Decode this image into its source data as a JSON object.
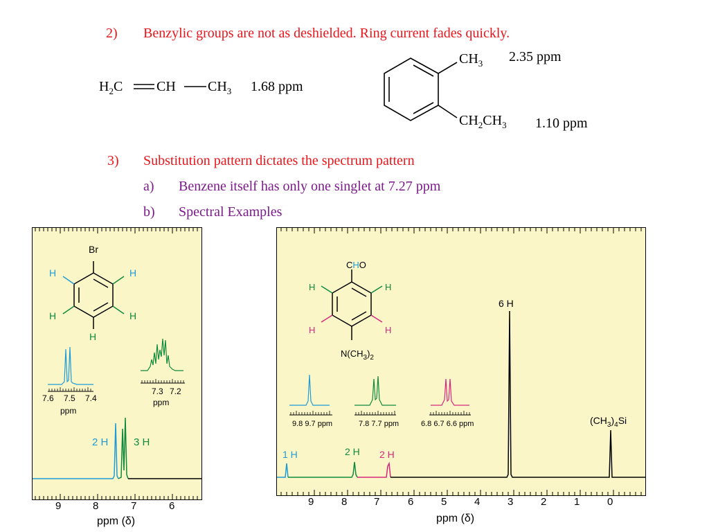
{
  "bullets": {
    "b2": {
      "num": "2)",
      "text": "Benzylic groups are not as deshielded.  Ring current fades quickly."
    },
    "b3": {
      "num": "3)",
      "text": "Substitution pattern dictates the spectrum pattern"
    },
    "ba": {
      "num": "a)",
      "text": "Benzene itself has only one singlet at 7.27 ppm"
    },
    "bb": {
      "num": "b)",
      "text": "Spectral Examples"
    }
  },
  "propene": {
    "h2c": "H",
    "h2c_sub": "2",
    "h2c_c": "C",
    "ch": "CH",
    "ch3": "CH",
    "ch3_sub": "3",
    "shift": "1.68 ppm"
  },
  "ethyltoluene": {
    "ch3": "CH",
    "ch3_sub": "3",
    "ch3_shift": "2.35 ppm",
    "ch2ch3_a": "CH",
    "ch2ch3_sub1": "2",
    "ch2ch3_b": "CH",
    "ch2ch3_sub2": "3",
    "ch2ch3_shift": "1.10 ppm"
  },
  "spectrum_left": {
    "substituent": "Br",
    "h_label": "H",
    "inset1_ticks": [
      "7.6",
      "7.5",
      "7.4"
    ],
    "inset1_unit": "ppm",
    "inset2_ticks": [
      "7.3",
      "7.2"
    ],
    "inset2_unit": "ppm",
    "peak_label_2h": "2 H",
    "peak_label_3h": "3 H",
    "axis_ticks": [
      "9",
      "8",
      "7",
      "6"
    ],
    "axis_label": "ppm (δ)",
    "colors": {
      "blue": "#1e9ad6",
      "green": "#0f8a3c"
    }
  },
  "spectrum_right": {
    "cho_c": "C",
    "cho_h": "H",
    "cho_o": "O",
    "n_group": "N(CH",
    "n_sub": "3",
    "n_close": ")",
    "n_sub2": "2",
    "h_label": "H",
    "inset1_ticks": "9.8  9.7 ppm",
    "inset2_ticks": "7.8  7.7 ppm",
    "inset3_ticks": "6.8  6.7  6.6 ppm",
    "label_6h": "6 H",
    "label_tms": "(CH",
    "label_tms_sub": "3",
    "label_tms_end": ")",
    "label_tms_sub2": "4",
    "label_tms_si": "Si",
    "label_1h": "1 H",
    "label_2h_green": "2 H",
    "label_2h_pink": "2 H",
    "axis_ticks": [
      "9",
      "8",
      "7",
      "6",
      "5",
      "4",
      "3",
      "2",
      "1",
      "0"
    ],
    "axis_label": "ppm (δ)",
    "colors": {
      "blue": "#1e9ad6",
      "green": "#0f8a3c",
      "pink": "#d6287e"
    }
  }
}
